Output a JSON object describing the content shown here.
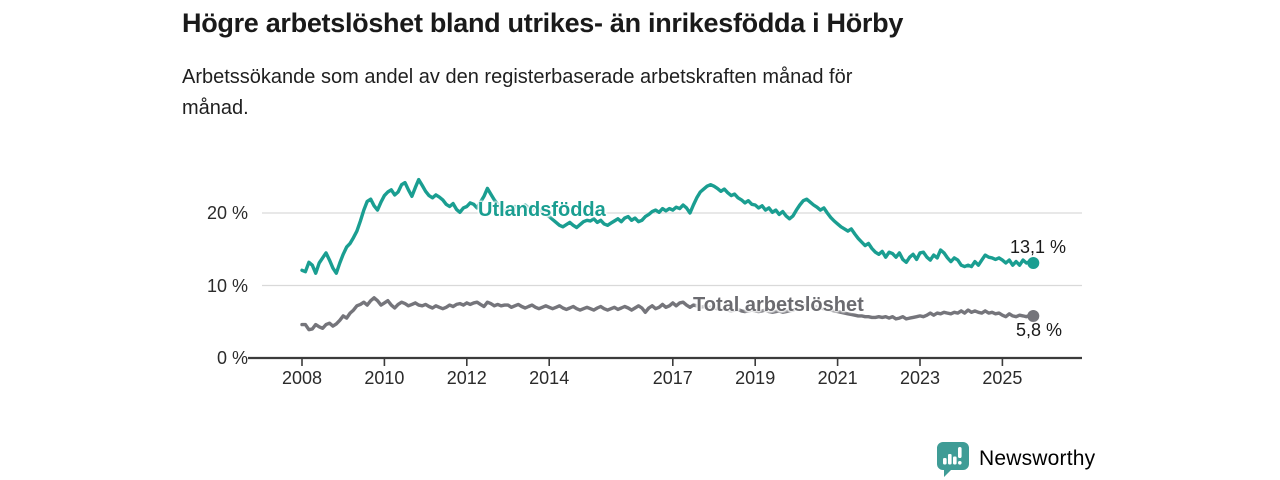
{
  "title": "Högre arbetslöshet bland utrikes- än inrikesfödda i Hörby",
  "subtitle": "Arbetssökande som andel av den registerbaserade arbetskraften månad för månad.",
  "branding": {
    "name": "Newsworthy",
    "color": "#3f9c96",
    "icon": "bar-chart-speech-bubble-icon"
  },
  "colors": {
    "foreign_born_line": "#1a9e91",
    "total_line": "#75757b",
    "axis": "#3b3b3b",
    "gridline": "#d9d9d9",
    "text": "#1a1a1a"
  },
  "chart_data": {
    "type": "line",
    "title": "Högre arbetslöshet bland utrikes- än inrikesfödda i Hörby",
    "xlabel": "",
    "ylabel": "Arbetssökande som andel av den registerbaserade arbetskraften (%)",
    "x_start_year": 2008,
    "points_per_year": 12,
    "x_ticks": [
      2008,
      2010,
      2012,
      2014,
      2017,
      2019,
      2021,
      2023,
      2025
    ],
    "y_ticks": [
      {
        "label": "0 %",
        "value": 0
      },
      {
        "label": "10 %",
        "value": 10
      },
      {
        "label": "20 %",
        "value": 20
      }
    ],
    "ylim": [
      0,
      26
    ],
    "grid": "horizontal",
    "legend_position": "inline-labels",
    "series": [
      {
        "name": "Utlandsfödda",
        "color": "#1a9e91",
        "end_label": "13,1 %",
        "end_value": 13.1,
        "values": [
          12.1,
          11.9,
          13.2,
          12.8,
          11.7,
          13.1,
          13.8,
          14.5,
          13.5,
          12.4,
          11.7,
          13.1,
          14.3,
          15.3,
          15.8,
          16.6,
          17.5,
          18.9,
          20.4,
          21.6,
          21.9,
          21.0,
          20.4,
          21.5,
          22.4,
          22.9,
          23.2,
          22.5,
          22.9,
          23.9,
          24.2,
          23.2,
          22.3,
          23.5,
          24.6,
          23.8,
          23.0,
          22.4,
          22.1,
          22.5,
          22.2,
          21.8,
          21.2,
          20.9,
          21.3,
          20.5,
          20.1,
          20.7,
          20.9,
          21.4,
          21.2,
          20.7,
          21.5,
          22.3,
          23.4,
          22.6,
          21.8,
          21.2,
          20.6,
          20.3,
          20.3,
          20.6,
          20.9,
          20.4,
          20.8,
          21.1,
          20.7,
          20.4,
          20.9,
          20.5,
          20.2,
          19.8,
          19.5,
          19.1,
          18.7,
          18.3,
          18.1,
          18.4,
          18.7,
          18.3,
          18.0,
          18.4,
          18.8,
          19.0,
          18.9,
          19.2,
          18.7,
          19.0,
          18.5,
          18.3,
          18.6,
          18.9,
          19.2,
          18.8,
          19.3,
          19.5,
          19.0,
          19.3,
          18.8,
          19.0,
          19.5,
          19.8,
          20.2,
          20.4,
          20.1,
          20.6,
          20.3,
          20.6,
          20.4,
          20.8,
          20.6,
          21.1,
          20.7,
          20.0,
          21.1,
          22.1,
          22.9,
          23.3,
          23.7,
          23.9,
          23.7,
          23.4,
          23.0,
          23.3,
          22.8,
          22.4,
          22.6,
          22.1,
          21.8,
          21.4,
          21.7,
          21.2,
          21.1,
          20.7,
          21.0,
          20.4,
          20.7,
          20.1,
          20.4,
          19.8,
          20.2,
          19.6,
          19.2,
          19.6,
          20.4,
          21.1,
          21.7,
          21.9,
          21.5,
          21.1,
          20.8,
          20.4,
          20.7,
          20.0,
          19.4,
          18.9,
          18.5,
          18.1,
          17.8,
          17.5,
          17.8,
          17.1,
          16.5,
          16.0,
          15.5,
          15.8,
          15.1,
          14.6,
          14.3,
          14.7,
          13.9,
          14.6,
          14.4,
          13.9,
          14.5,
          13.6,
          13.2,
          13.9,
          14.3,
          13.6,
          14.5,
          14.6,
          13.9,
          13.5,
          14.2,
          13.8,
          14.9,
          14.5,
          13.8,
          13.3,
          13.8,
          13.5,
          12.8,
          12.6,
          12.8,
          12.6,
          13.3,
          12.8,
          13.5,
          14.2,
          13.9,
          13.8,
          13.6,
          13.8,
          13.5,
          13.1,
          13.5,
          12.8,
          13.3,
          12.8,
          13.5,
          13.1,
          13.3,
          13.1
        ]
      },
      {
        "name": "Total arbetslöshet",
        "color": "#75757b",
        "end_label": "5,8 %",
        "end_value": 5.8,
        "values": [
          4.6,
          4.6,
          3.9,
          4.0,
          4.6,
          4.3,
          4.1,
          4.6,
          4.8,
          4.4,
          4.7,
          5.2,
          5.8,
          5.5,
          6.2,
          6.6,
          7.2,
          7.4,
          7.7,
          7.3,
          7.9,
          8.3,
          7.9,
          7.3,
          7.6,
          7.9,
          7.3,
          6.9,
          7.4,
          7.7,
          7.5,
          7.2,
          7.4,
          7.6,
          7.3,
          7.2,
          7.4,
          7.1,
          6.9,
          7.2,
          7.0,
          6.8,
          7.0,
          7.3,
          7.1,
          7.4,
          7.5,
          7.3,
          7.6,
          7.4,
          7.6,
          7.7,
          7.4,
          7.1,
          7.7,
          7.5,
          7.2,
          7.4,
          7.2,
          7.3,
          7.3,
          7.0,
          7.2,
          7.4,
          7.1,
          6.9,
          7.1,
          7.3,
          7.0,
          6.8,
          7.0,
          7.2,
          7.0,
          6.8,
          7.0,
          7.2,
          6.9,
          6.7,
          6.9,
          7.1,
          6.8,
          6.6,
          6.8,
          7.0,
          6.8,
          6.6,
          6.9,
          7.1,
          6.8,
          6.6,
          6.8,
          7.0,
          6.7,
          6.9,
          7.1,
          6.9,
          6.6,
          6.9,
          7.2,
          6.9,
          6.3,
          6.9,
          7.2,
          6.8,
          7.0,
          7.4,
          7.0,
          7.2,
          7.6,
          7.2,
          7.6,
          7.7,
          7.3,
          7.0,
          7.3,
          7.2,
          7.0,
          7.1,
          6.9,
          7.0,
          6.9,
          6.8,
          6.7,
          6.8,
          6.6,
          6.5,
          6.6,
          6.7,
          6.5,
          6.4,
          6.5,
          6.6,
          6.5,
          6.4,
          6.5,
          6.6,
          6.4,
          6.3,
          6.4,
          6.5,
          6.3,
          6.4,
          6.5,
          6.6,
          6.8,
          6.9,
          7.1,
          7.3,
          7.2,
          7.1,
          7.0,
          6.9,
          6.8,
          6.7,
          6.6,
          6.5,
          6.4,
          6.3,
          6.2,
          6.1,
          6.0,
          5.9,
          5.8,
          5.8,
          5.7,
          5.7,
          5.6,
          5.6,
          5.7,
          5.6,
          5.7,
          5.5,
          5.7,
          5.4,
          5.5,
          5.7,
          5.4,
          5.5,
          5.6,
          5.7,
          5.8,
          5.7,
          5.9,
          6.2,
          5.9,
          6.2,
          6.1,
          6.3,
          6.2,
          6.1,
          6.3,
          6.2,
          6.5,
          6.2,
          6.6,
          6.3,
          6.5,
          6.3,
          6.2,
          6.5,
          6.2,
          6.3,
          6.1,
          6.2,
          5.9,
          5.7,
          6.1,
          5.8,
          5.7,
          5.9,
          5.8,
          5.7,
          5.9,
          5.8
        ]
      }
    ]
  }
}
